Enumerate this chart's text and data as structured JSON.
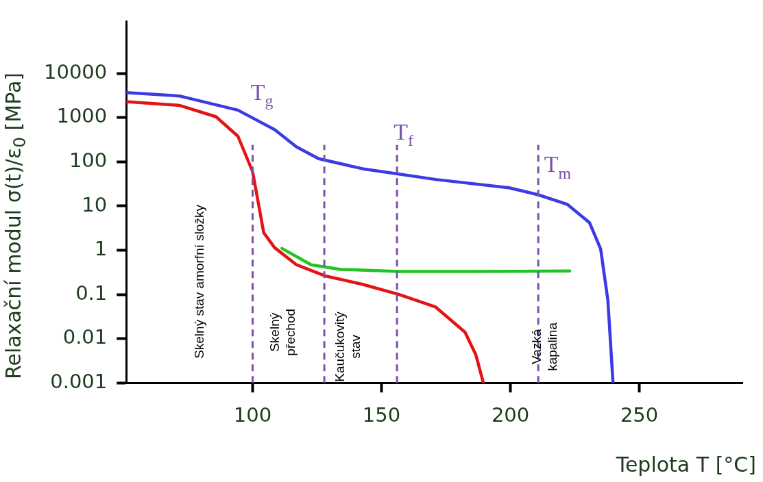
{
  "chart_data": {
    "type": "line",
    "xlabel": "Teplota T [°C]",
    "ylabel": "Relaxační modul σ(t)/ε$_{0}$ [MPa]",
    "log": "y",
    "xlim": [
      51,
      290
    ],
    "xticks": [
      100,
      150,
      200,
      250
    ],
    "ylim": [
      0.001,
      150000
    ],
    "yticks": [
      0.001,
      0.01,
      0.1,
      1,
      10,
      100,
      1000,
      10000
    ],
    "grid": false,
    "legend": false,
    "marker": "none",
    "line_style": "solid",
    "series": [
      {
        "color": "#3b3be6",
        "x": [
          51,
          71.6,
          94.3,
          108.5,
          117,
          125.6,
          142.6,
          171,
          199.4,
          210.8,
          222,
          230.7,
          235,
          237.8,
          239.8
        ],
        "values": [
          3700,
          3100,
          1480,
          540,
          218,
          118,
          70,
          40,
          26,
          18,
          11,
          4.2,
          1.07,
          0.074,
          0.001
        ]
      },
      {
        "color": "#e21414",
        "x": [
          51,
          71.6,
          85.8,
          94.3,
          100,
          102.3,
          104.3,
          108.5,
          117,
          128.4,
          142.6,
          156.8,
          171,
          182.4,
          186.6,
          189.5
        ],
        "values": [
          2300,
          1900,
          1050,
          380,
          60,
          11,
          2.5,
          1.15,
          0.47,
          0.26,
          0.17,
          0.1,
          0.052,
          0.014,
          0.0043,
          0.001
        ]
      },
      {
        "color": "#22c422",
        "x": [
          111.4,
          122.7,
          134,
          156.8,
          185,
          223
        ],
        "values": [
          1.1,
          0.47,
          0.37,
          0.33,
          0.33,
          0.34
        ]
      }
    ],
    "ref_lines": [
      {
        "axis": "x",
        "value": 100,
        "color": "#7b52a8",
        "line_style": "dashed"
      },
      {
        "axis": "x",
        "value": 127.8,
        "color": "#7b52a8",
        "line_style": "dashed"
      },
      {
        "axis": "x",
        "value": 156,
        "color": "#7b52a8",
        "line_style": "dashed"
      },
      {
        "axis": "x",
        "value": 210.8,
        "color": "#7b52a8",
        "line_style": "dashed"
      }
    ],
    "annotations": [
      "T$_{g}$",
      "T$_{f}$",
      "T$_{m}$",
      "Skelný stav amorfní složky",
      "Skelný\npřechod",
      "Kaučukovitý\nstav",
      "Vazká\nkapalina"
    ]
  }
}
